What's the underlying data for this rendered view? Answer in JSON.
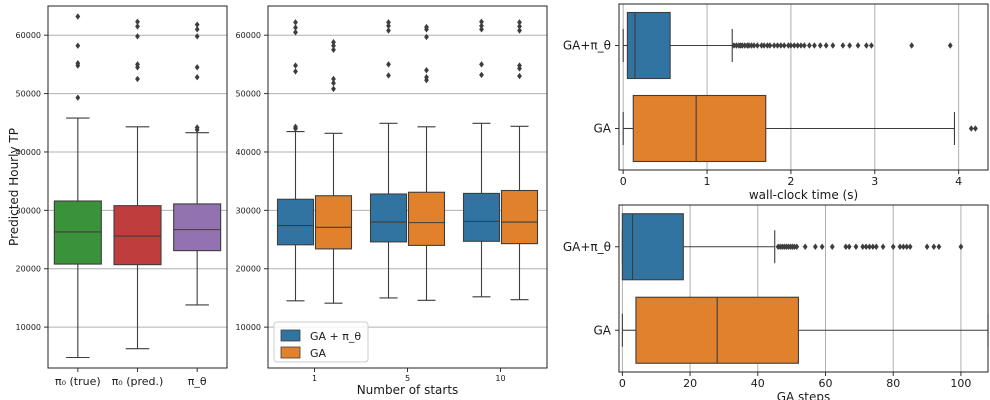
{
  "chart_data": [
    {
      "type": "box",
      "ylabel": "Predicted Hourly TP",
      "ylim": [
        3000,
        65000
      ],
      "yticks": [
        "10000",
        "20000",
        "30000",
        "40000",
        "50000",
        "60000"
      ],
      "ytick_values": [
        10000,
        20000,
        30000,
        40000,
        50000,
        60000
      ],
      "grid": "horizontal",
      "categories": [
        "π₀ (true)",
        "π₀ (pred.)",
        "π_θ"
      ],
      "colors": [
        "#3a923a",
        "#c03d3e",
        "#9372b2"
      ],
      "boxes": [
        {
          "label": "π₀ (true)",
          "whislo": 4800,
          "q1": 20800,
          "med": 26300,
          "q3": 31600,
          "whishi": 45800,
          "fliers": [
            49300,
            54800,
            55200,
            58200,
            63200
          ]
        },
        {
          "label": "π₀ (pred.)",
          "whislo": 6300,
          "q1": 20700,
          "med": 25600,
          "q3": 30800,
          "whishi": 44300,
          "fliers": [
            52500,
            54500,
            55000,
            59800,
            61500,
            62300
          ]
        },
        {
          "label": "π_θ",
          "whislo": 13800,
          "q1": 23100,
          "med": 26700,
          "q3": 31100,
          "whishi": 43300,
          "fliers": [
            43800,
            44200,
            52800,
            54500,
            59800,
            61000,
            61800
          ]
        }
      ]
    },
    {
      "type": "box",
      "xlabel": "Number of starts",
      "ylim": [
        3000,
        65000
      ],
      "yticks": [
        "10000",
        "20000",
        "30000",
        "40000",
        "50000",
        "60000"
      ],
      "ytick_values": [
        10000,
        20000,
        30000,
        40000,
        50000,
        60000
      ],
      "grid": "horizontal",
      "categories": [
        "1",
        "5",
        "10"
      ],
      "series": [
        {
          "name": "GA + π_θ",
          "color": "#3274a1"
        },
        {
          "name": "GA",
          "color": "#e1812c"
        }
      ],
      "legend": {
        "position": "lower-left",
        "entries": [
          "GA + π_θ",
          "GA"
        ]
      },
      "boxes": [
        {
          "group": "1",
          "series": "GA + π_θ",
          "whislo": 14500,
          "q1": 24100,
          "med": 27400,
          "q3": 31900,
          "whishi": 43500,
          "fliers": [
            44000,
            44300,
            53800,
            54800,
            60500,
            61300,
            62200
          ]
        },
        {
          "group": "1",
          "series": "GA",
          "whislo": 14100,
          "q1": 23400,
          "med": 27100,
          "q3": 32500,
          "whishi": 43200,
          "fliers": [
            50800,
            51800,
            52500,
            57500,
            58200,
            58800
          ]
        },
        {
          "group": "5",
          "series": "GA + π_θ",
          "whislo": 15000,
          "q1": 24600,
          "med": 28000,
          "q3": 32800,
          "whishi": 44900,
          "fliers": [
            53100,
            55000,
            60800,
            61600,
            62200
          ]
        },
        {
          "group": "5",
          "series": "GA",
          "whislo": 14600,
          "q1": 24000,
          "med": 27900,
          "q3": 33100,
          "whishi": 44300,
          "fliers": [
            52300,
            52800,
            54000,
            59700,
            61000,
            61400
          ]
        },
        {
          "group": "10",
          "series": "GA + π_θ",
          "whislo": 15200,
          "q1": 24700,
          "med": 28100,
          "q3": 32900,
          "whishi": 44900,
          "fliers": [
            53200,
            55000,
            61000,
            61600,
            62300
          ]
        },
        {
          "group": "10",
          "series": "GA",
          "whislo": 14700,
          "q1": 24300,
          "med": 28000,
          "q3": 33400,
          "whishi": 44400,
          "fliers": [
            53000,
            54300,
            54800,
            60800,
            61500,
            62200
          ]
        }
      ]
    },
    {
      "type": "box",
      "orientation": "horizontal",
      "xlabel": "wall-clock time (s)",
      "xlim": [
        -0.05,
        4.35
      ],
      "xticks": [
        "0",
        "1",
        "2",
        "3",
        "4"
      ],
      "xtick_values": [
        0,
        1,
        2,
        3,
        4
      ],
      "grid": "vertical",
      "categories": [
        "GA+π_θ",
        "GA"
      ],
      "boxes": [
        {
          "label": "GA+π_θ",
          "color": "#3274a1",
          "whislo": 0.0,
          "q1": 0.05,
          "med": 0.14,
          "q3": 0.56,
          "whishi": 1.3,
          "fliers": [
            1.32,
            1.35,
            1.38,
            1.4,
            1.42,
            1.45,
            1.48,
            1.5,
            1.53,
            1.56,
            1.6,
            1.65,
            1.68,
            1.72,
            1.75,
            1.8,
            1.84,
            1.88,
            1.92,
            1.97,
            2.0,
            2.04,
            2.08,
            2.12,
            2.16,
            2.22,
            2.28,
            2.35,
            2.42,
            2.5,
            2.62,
            2.7,
            2.8,
            2.9,
            2.96,
            3.44,
            3.9
          ]
        },
        {
          "label": "GA",
          "color": "#e1812c",
          "whislo": 0.0,
          "q1": 0.12,
          "med": 0.87,
          "q3": 1.7,
          "whishi": 3.95,
          "fliers": [
            4.15,
            4.2
          ]
        }
      ]
    },
    {
      "type": "box",
      "orientation": "horizontal",
      "xlabel": "GA steps",
      "xlim": [
        -1,
        108
      ],
      "xticks": [
        "0",
        "20",
        "40",
        "60",
        "80",
        "100"
      ],
      "xtick_values": [
        0,
        20,
        40,
        60,
        80,
        100
      ],
      "grid": "vertical",
      "categories": [
        "GA+π_θ",
        "GA"
      ],
      "boxes": [
        {
          "label": "GA+π_θ",
          "color": "#3274a1",
          "whislo": 0,
          "q1": 0,
          "med": 3,
          "q3": 18,
          "whishi": 45,
          "fliers": [
            46,
            46.6,
            47.2,
            47.8,
            48.4,
            49,
            49.6,
            50.2,
            50.8,
            51.5,
            54,
            57,
            59,
            62,
            66,
            67,
            69,
            71,
            72,
            73,
            74,
            75,
            77,
            80,
            82,
            83,
            84,
            85,
            90,
            92,
            93.5,
            100
          ]
        },
        {
          "label": "GA",
          "color": "#e1812c",
          "whislo": 0,
          "q1": 4,
          "med": 28,
          "q3": 52,
          "whishi": 108,
          "fliers": []
        }
      ]
    }
  ]
}
